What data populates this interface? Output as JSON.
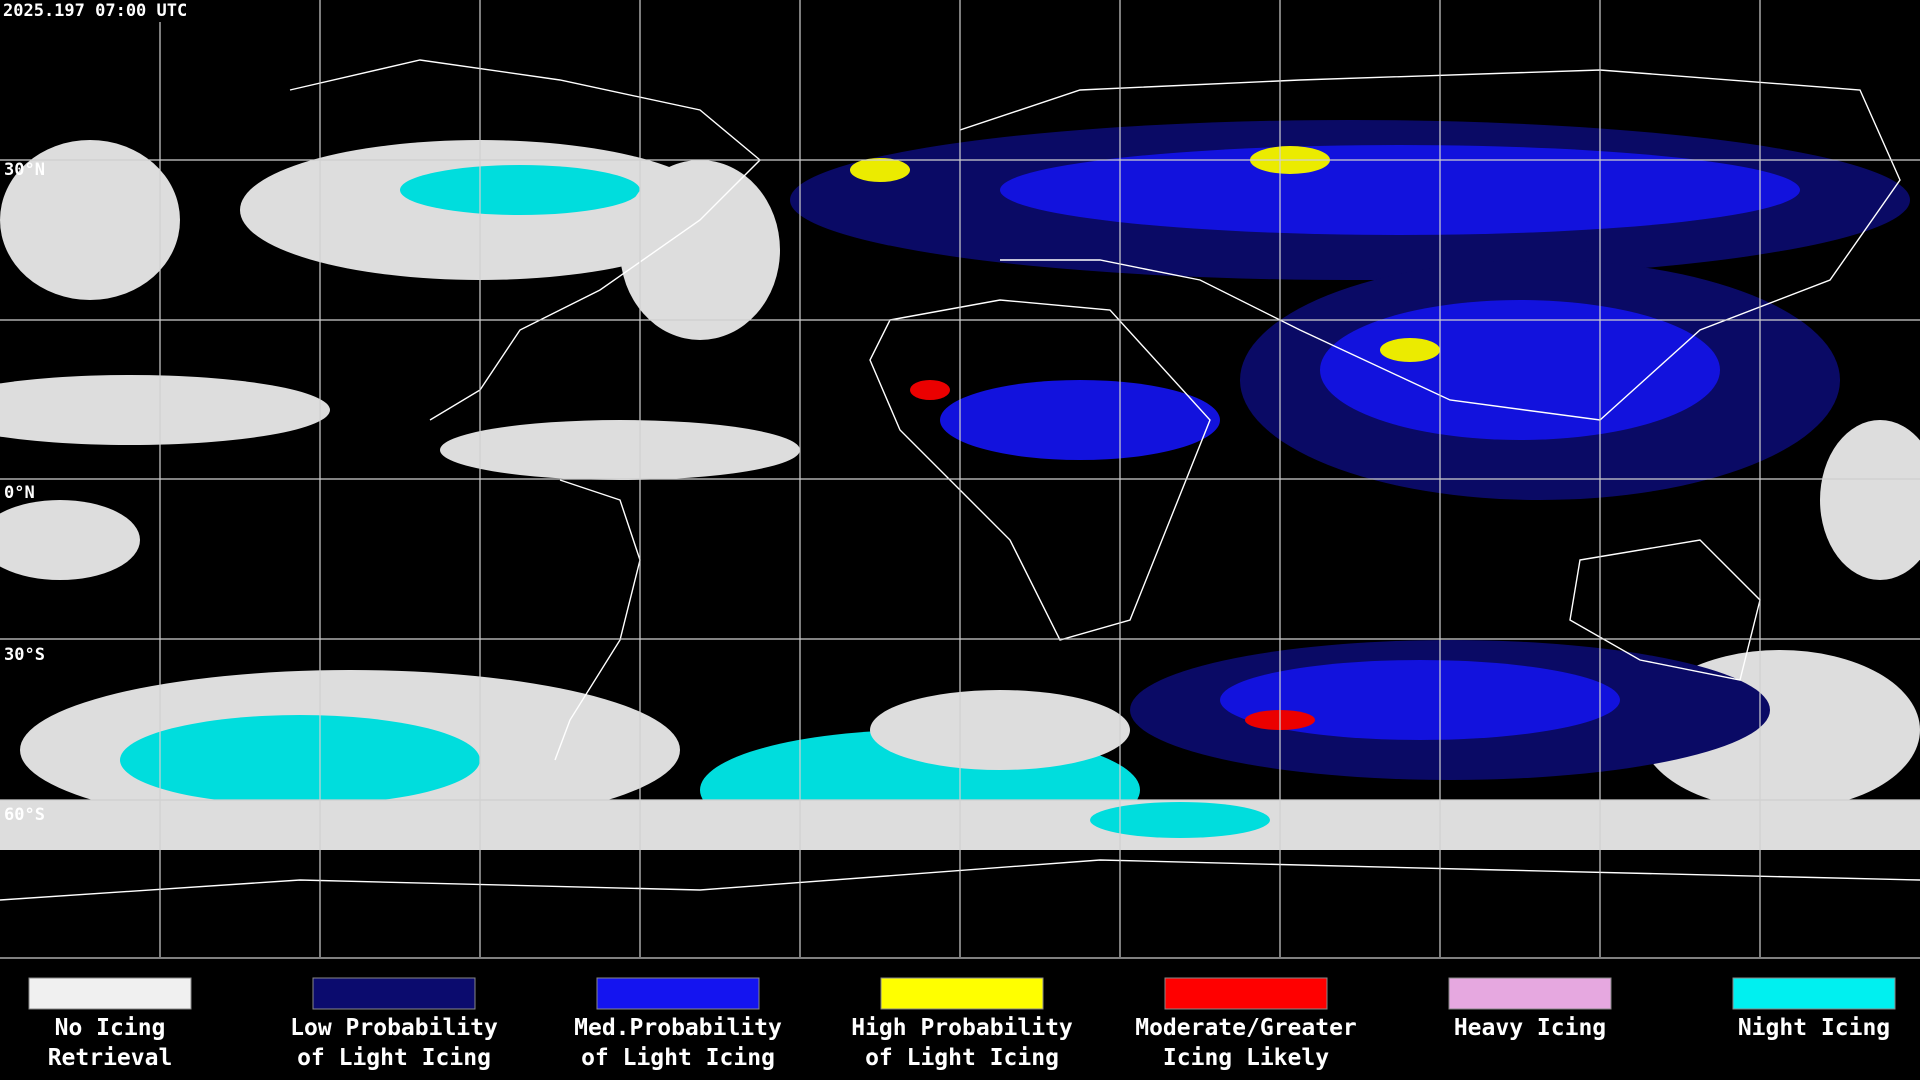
{
  "header": {
    "timestamp": "2025.197 07:00 UTC"
  },
  "lat_labels": [
    "30°N",
    "0°N",
    "30°S",
    "60°S"
  ],
  "legend": [
    {
      "color": "#f0f0f0",
      "label": [
        "No Icing",
        "Retrieval"
      ]
    },
    {
      "color": "#0b0b6e",
      "label": [
        "Low Probability",
        "of Light Icing"
      ]
    },
    {
      "color": "#1414f0",
      "label": [
        "Med.Probability",
        "of Light Icing"
      ]
    },
    {
      "color": "#ffff00",
      "label": [
        "High Probability",
        "of Light Icing"
      ]
    },
    {
      "color": "#ff0000",
      "label": [
        "Moderate/Greater",
        "Icing Likely"
      ]
    },
    {
      "color": "#e6a8e0",
      "label": [
        "Heavy Icing"
      ]
    },
    {
      "color": "#00f0f0",
      "label": [
        "Night Icing"
      ]
    }
  ]
}
